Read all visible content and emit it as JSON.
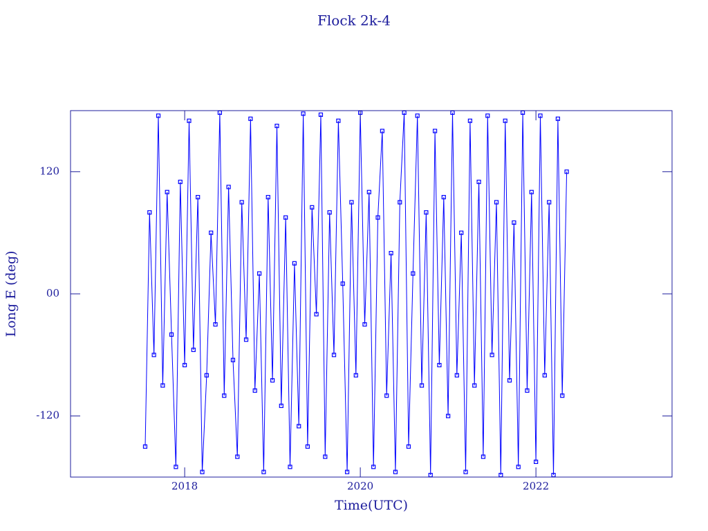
{
  "chart_data": {
    "type": "line",
    "title": "Flock 2k-4",
    "x_label": "Time(UTC)",
    "y_label": "Long E (deg)",
    "xlim": [
      2016.7,
      2023.55
    ],
    "xticks": [
      2018,
      2020,
      2022
    ],
    "ylim": [
      -180,
      180
    ],
    "yticks": [
      -120,
      {
        "value": 0,
        "label": "00"
      },
      120
    ],
    "series": [
      {
        "color": "#0000ff",
        "x": [
          2017.55,
          2017.6,
          2017.65,
          2017.7,
          2017.75,
          2017.8,
          2017.85,
          2017.9,
          2017.95,
          2018.0,
          2018.05,
          2018.1,
          2018.15,
          2018.2,
          2018.25,
          2018.3,
          2018.35,
          2018.4,
          2018.45,
          2018.5,
          2018.55,
          2018.6,
          2018.65,
          2018.7,
          2018.75,
          2018.8,
          2018.85,
          2018.9,
          2018.95,
          2019.0,
          2019.05,
          2019.1,
          2019.15,
          2019.2,
          2019.25,
          2019.3,
          2019.35,
          2019.4,
          2019.45,
          2019.5,
          2019.55,
          2019.6,
          2019.65,
          2019.7,
          2019.75,
          2019.8,
          2019.85,
          2019.9,
          2019.95,
          2020.0,
          2020.05,
          2020.1,
          2020.15,
          2020.2,
          2020.25,
          2020.3,
          2020.35,
          2020.4,
          2020.45,
          2020.5,
          2020.55,
          2020.6,
          2020.65,
          2020.7,
          2020.75,
          2020.8,
          2020.85,
          2020.9,
          2020.95,
          2021.0,
          2021.05,
          2021.1,
          2021.15,
          2021.2,
          2021.25,
          2021.3,
          2021.35,
          2021.4,
          2021.45,
          2021.5,
          2021.55,
          2021.6,
          2021.65,
          2021.7,
          2021.75,
          2021.8,
          2021.85,
          2021.9,
          2021.95,
          2022.0,
          2022.05,
          2022.1,
          2022.15,
          2022.2,
          2022.25,
          2022.3,
          2022.35
        ],
        "values": [
          -150,
          80,
          -60,
          175,
          -90,
          100,
          -40,
          -170,
          110,
          -70,
          170,
          -55,
          95,
          -175,
          -80,
          60,
          -30,
          178,
          -100,
          105,
          -65,
          -160,
          90,
          -45,
          172,
          -95,
          20,
          -175,
          95,
          -85,
          165,
          -110,
          75,
          -170,
          30,
          -130,
          177,
          -150,
          85,
          -20,
          176,
          -160,
          80,
          -60,
          170,
          10,
          -175,
          90,
          -80,
          178,
          -30,
          100,
          -170,
          75,
          160,
          -100,
          40,
          -175,
          90,
          178,
          -150,
          20,
          175,
          -90,
          80,
          -178,
          160,
          -70,
          95,
          -120,
          178,
          -80,
          60,
          -175,
          170,
          -90,
          110,
          -160,
          175,
          -60,
          90,
          -178,
          170,
          -85,
          70,
          -170,
          178,
          -95,
          100,
          -165,
          175,
          -80,
          90,
          -178,
          172,
          -100,
          120
        ]
      }
    ]
  }
}
